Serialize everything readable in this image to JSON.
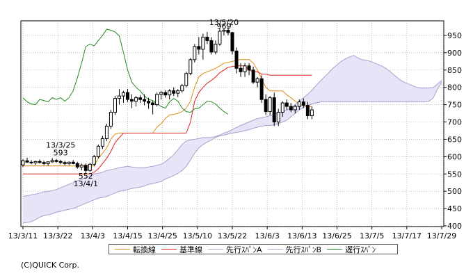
{
  "chart_data": {
    "type": "candlestick",
    "y_ticks": [
      400,
      450,
      500,
      550,
      600,
      650,
      700,
      750,
      800,
      850,
      900,
      950
    ],
    "ylim": [
      398,
      992
    ],
    "x_tick_labels": [
      "13/3/11",
      "13/3/22",
      "13/4/3",
      "13/4/15",
      "13/4/25",
      "13/5/10",
      "13/5/22",
      "13/6/3",
      "13/6/13",
      "13/6/25",
      "13/7/5",
      "13/7/17",
      "13/7/29"
    ],
    "total_slots": 101,
    "candles": [
      [
        576,
        592,
        570,
        588
      ],
      [
        588,
        597,
        582,
        584
      ],
      [
        584,
        590,
        578,
        582
      ],
      [
        582,
        588,
        576,
        586
      ],
      [
        586,
        592,
        580,
        583
      ],
      [
        583,
        588,
        575,
        580
      ],
      [
        580,
        586,
        574,
        585
      ],
      [
        585,
        596,
        582,
        589
      ],
      [
        589,
        593,
        582,
        586
      ],
      [
        586,
        591,
        578,
        583
      ],
      [
        583,
        588,
        575,
        580
      ],
      [
        580,
        586,
        575,
        584
      ],
      [
        584,
        590,
        578,
        580
      ],
      [
        580,
        585,
        565,
        570
      ],
      [
        570,
        580,
        560,
        575
      ],
      [
        575,
        580,
        552,
        560
      ],
      [
        560,
        582,
        556,
        578
      ],
      [
        578,
        605,
        572,
        600
      ],
      [
        600,
        635,
        595,
        630
      ],
      [
        630,
        660,
        622,
        652
      ],
      [
        652,
        695,
        645,
        688
      ],
      [
        688,
        735,
        680,
        728
      ],
      [
        728,
        775,
        720,
        768
      ],
      [
        768,
        795,
        750,
        775
      ],
      [
        775,
        790,
        755,
        785
      ],
      [
        785,
        795,
        758,
        765
      ],
      [
        765,
        780,
        740,
        760
      ],
      [
        760,
        775,
        745,
        770
      ],
      [
        770,
        778,
        755,
        765
      ],
      [
        765,
        780,
        748,
        760
      ],
      [
        760,
        770,
        738,
        755
      ],
      [
        755,
        760,
        722,
        750
      ],
      [
        750,
        785,
        745,
        780
      ],
      [
        780,
        790,
        765,
        785
      ],
      [
        785,
        792,
        770,
        778
      ],
      [
        778,
        795,
        765,
        790
      ],
      [
        790,
        800,
        775,
        783
      ],
      [
        783,
        795,
        772,
        790
      ],
      [
        790,
        810,
        785,
        805
      ],
      [
        805,
        845,
        800,
        840
      ],
      [
        840,
        885,
        835,
        880
      ],
      [
        880,
        925,
        872,
        918
      ],
      [
        918,
        945,
        895,
        910
      ],
      [
        910,
        955,
        880,
        945
      ],
      [
        945,
        960,
        925,
        935
      ],
      [
        935,
        945,
        895,
        902
      ],
      [
        902,
        935,
        895,
        925
      ],
      [
        925,
        970,
        920,
        962
      ],
      [
        962,
        970,
        950,
        965
      ],
      [
        965,
        975,
        950,
        958
      ],
      [
        958,
        960,
        895,
        905
      ],
      [
        905,
        915,
        840,
        855
      ],
      [
        855,
        870,
        830,
        845
      ],
      [
        845,
        870,
        830,
        862
      ],
      [
        862,
        870,
        835,
        850
      ],
      [
        850,
        860,
        810,
        815
      ],
      [
        815,
        830,
        800,
        825
      ],
      [
        825,
        835,
        755,
        765
      ],
      [
        765,
        780,
        720,
        730
      ],
      [
        730,
        775,
        720,
        770
      ],
      [
        770,
        785,
        688,
        700
      ],
      [
        700,
        738,
        688,
        728
      ],
      [
        728,
        760,
        715,
        755
      ],
      [
        755,
        765,
        735,
        745
      ],
      [
        745,
        755,
        728,
        735
      ],
      [
        735,
        750,
        725,
        745
      ],
      [
        745,
        765,
        735,
        758
      ],
      [
        758,
        768,
        740,
        748
      ],
      [
        748,
        758,
        708,
        718
      ],
      [
        718,
        745,
        708,
        735
      ]
    ],
    "series": [
      {
        "name": "転換線",
        "color": "#e08a10",
        "start": 0,
        "values": [
          573,
          573,
          573,
          573,
          573,
          573,
          573,
          573,
          573,
          573,
          573,
          573,
          573,
          573,
          573,
          573,
          573,
          573,
          595,
          610,
          625,
          650,
          665,
          668,
          668,
          668,
          668,
          668,
          668,
          668,
          668,
          668,
          685,
          695,
          710,
          720,
          722,
          725,
          730,
          740,
          760,
          800,
          830,
          840,
          845,
          850,
          855,
          862,
          870,
          872,
          875,
          878,
          880,
          880,
          880,
          870,
          850,
          825,
          800,
          790,
          790,
          790,
          790,
          778,
          770,
          760,
          752,
          748,
          745,
          745
        ]
      },
      {
        "name": "基準線",
        "color": "#dd2020",
        "start": 0,
        "values": [
          550,
          550,
          550,
          550,
          550,
          550,
          550,
          550,
          550,
          550,
          550,
          550,
          550,
          550,
          550,
          550,
          550,
          555,
          565,
          580,
          595,
          615,
          640,
          655,
          668,
          668,
          668,
          668,
          668,
          668,
          668,
          668,
          668,
          668,
          668,
          668,
          668,
          668,
          668,
          668,
          700,
          760,
          785,
          800,
          812,
          820,
          830,
          842,
          850,
          858,
          860,
          862,
          862,
          862,
          850,
          845,
          845,
          838,
          838,
          835,
          835,
          835,
          835,
          835,
          835,
          835,
          835,
          835,
          835,
          835
        ]
      },
      {
        "name": "先行スパンA",
        "color": "#a99fcc",
        "start": 0,
        "values": [
          485,
          487,
          490,
          492,
          495,
          498,
          500,
          502,
          505,
          510,
          515,
          520,
          525,
          530,
          535,
          540,
          545,
          550,
          552,
          555,
          560,
          562,
          565,
          568,
          570,
          572,
          570,
          568,
          568,
          568,
          570,
          572,
          575,
          578,
          585,
          595,
          605,
          620,
          635,
          645,
          648,
          650,
          652,
          655,
          655,
          655,
          658,
          662,
          668,
          672,
          678,
          684,
          690,
          695,
          700,
          705,
          710,
          712,
          715,
          718,
          722,
          726,
          730,
          735,
          740,
          750,
          760,
          770,
          780,
          792,
          805,
          818,
          830,
          842,
          855,
          865,
          875,
          882,
          888,
          892,
          885,
          880,
          878,
          875,
          870,
          865,
          860,
          852,
          842,
          832,
          822,
          815,
          810,
          805,
          800,
          798,
          798,
          798,
          800,
          810,
          820
        ]
      },
      {
        "name": "先行スパンB",
        "color": "#a99fcc",
        "start": 0,
        "values": [
          408,
          410,
          412,
          418,
          425,
          430,
          432,
          435,
          440,
          442,
          445,
          448,
          450,
          455,
          460,
          465,
          470,
          475,
          480,
          482,
          485,
          490,
          495,
          500,
          502,
          505,
          508,
          510,
          512,
          515,
          520,
          522,
          525,
          528,
          535,
          540,
          545,
          552,
          560,
          572,
          590,
          610,
          625,
          635,
          642,
          648,
          655,
          660,
          662,
          665,
          668,
          670,
          672,
          675,
          678,
          682,
          685,
          688,
          690,
          690,
          692,
          695,
          700,
          705,
          715,
          725,
          735,
          742,
          748,
          752,
          755,
          758,
          758,
          758,
          758,
          758,
          758,
          758,
          758,
          758,
          758,
          758,
          758,
          758,
          758,
          758,
          758,
          758,
          758,
          758,
          758,
          758,
          758,
          758,
          758,
          758,
          758,
          760,
          770,
          795,
          815
        ]
      },
      {
        "name": "遅行スパン",
        "color": "#1f8a1f",
        "start": 0,
        "values": [
          770,
          758,
          752,
          750,
          765,
          762,
          758,
          770,
          765,
          770,
          760,
          770,
          790,
          828,
          870,
          918,
          925,
          920,
          935,
          950,
          968,
          965,
          960,
          948,
          900,
          850,
          815,
          800,
          790,
          775,
          765,
          762,
          752,
          745,
          740,
          758,
          768,
          760,
          740,
          730,
          728,
          738,
          740,
          750,
          760,
          758,
          752,
          740,
          730,
          722
        ]
      }
    ],
    "annotations": [
      {
        "text": "13/5/20",
        "x_slot": 48,
        "y": 980
      },
      {
        "text": "969",
        "x_slot": 48,
        "y": 969
      },
      {
        "text": "13/3/25",
        "x_slot": 9,
        "y": 626
      },
      {
        "text": "593",
        "x_slot": 9,
        "y": 604
      },
      {
        "text": "552",
        "x_slot": 15,
        "y": 536
      },
      {
        "text": "13/4/1",
        "x_slot": 15,
        "y": 514
      }
    ]
  },
  "legend": [
    {
      "label": "転換線",
      "color": "#e08a10"
    },
    {
      "label": "基準線",
      "color": "#dd2020"
    },
    {
      "label": "先行ｽﾊﾟﾝA",
      "color": "#a99fcc"
    },
    {
      "label": "先行ｽﾊﾟﾝB",
      "color": "#a99fcc"
    },
    {
      "label": "遅行ｽﾊﾟﾝ",
      "color": "#1f8a1f"
    }
  ],
  "copyright": "(C)QUICK Corp.",
  "colors": {
    "cloud_fill": "#e8e4f8",
    "candle": "#000000",
    "grid": "#9a9a9a"
  }
}
